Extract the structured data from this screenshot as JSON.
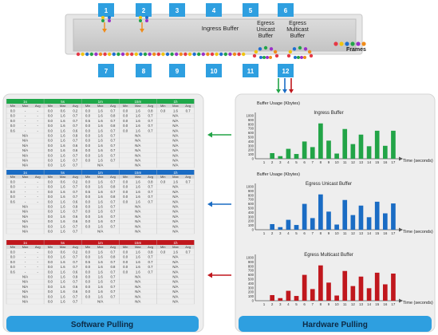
{
  "switch": {
    "ports_top": [
      "1",
      "2",
      "3",
      "4",
      "5",
      "6"
    ],
    "ports_bottom": [
      "7",
      "8",
      "9",
      "10",
      "11",
      "12"
    ],
    "ingress_label": "Ingress Buffer",
    "egress_unicast_label": "Egress\nUnicast\nBuffer",
    "egress_multicast_label": "Egress\nMulticast\nBuffer",
    "frames_label": "Frames",
    "frame_colors": [
      "#e63946",
      "#f1c40f",
      "#1f6fd1",
      "#22a447",
      "#9b30c8",
      "#f08c1a"
    ]
  },
  "software": {
    "label": "Software Pulling",
    "header_groups": [
      "1s",
      "5s",
      "1m",
      "15m",
      "1h"
    ],
    "subheaders": [
      "Min",
      "Max",
      "Avg",
      "Min",
      "Max",
      "Avg",
      "Min",
      "Max",
      "Avg",
      "Min",
      "Max",
      "Avg",
      "Min",
      "Max",
      "Avg"
    ],
    "tables": [
      {
        "color": "#1fa84a",
        "rows": [
          [
            "0.0",
            "-",
            "-",
            "0.0",
            "0.6",
            "0.2",
            "0.0",
            "1.6",
            "0.7",
            "0.0",
            "1.6",
            "0.8",
            "0.0",
            "1.6",
            "0.7"
          ],
          [
            "0.0",
            "-",
            "-",
            "0.0",
            "1.6",
            "0.7",
            "0.0",
            "1.6",
            "0.8",
            "0.0",
            "1.6",
            "0.7",
            "",
            "N/A",
            ""
          ],
          [
            "0.0",
            "-",
            "-",
            "0.0",
            "1.6",
            "0.7",
            "0.5",
            "1.6",
            "0.7",
            "0.0",
            "1.6",
            "0.7",
            "",
            "N/A",
            ""
          ],
          [
            "0.0",
            "-",
            "-",
            "0.0",
            "1.6",
            "0.7",
            "0.0",
            "1.6",
            "0.8",
            "0.0",
            "1.6",
            "0.7",
            "",
            "N/A",
            ""
          ],
          [
            "0.6",
            "-",
            "-",
            "0.0",
            "1.6",
            "0.6",
            "0.0",
            "1.6",
            "0.7",
            "0.0",
            "1.6",
            "0.7",
            "",
            "N/A",
            ""
          ],
          [
            "",
            "N/A",
            "",
            "0.0",
            "1.6",
            "0.9",
            "0.0",
            "1.6",
            "0.7",
            "",
            "N/A",
            "",
            "",
            "N/A",
            ""
          ],
          [
            "",
            "N/A",
            "",
            "0.0",
            "1.6",
            "0.7",
            "0.0",
            "1.6",
            "0.7",
            "",
            "N/A",
            "",
            "",
            "N/A",
            ""
          ],
          [
            "",
            "N/A",
            "",
            "0.0",
            "1.6",
            "0.6",
            "0.0",
            "1.6",
            "0.7",
            "",
            "N/A",
            "",
            "",
            "N/A",
            ""
          ],
          [
            "",
            "N/A",
            "",
            "0.0",
            "1.6",
            "0.6",
            "0.0",
            "1.6",
            "0.7",
            "",
            "N/A",
            "",
            "",
            "N/A",
            ""
          ],
          [
            "",
            "N/A",
            "",
            "0.0",
            "1.6",
            "0.7",
            "0.0",
            "1.6",
            "0.7",
            "",
            "N/A",
            "",
            "",
            "N/A",
            ""
          ],
          [
            "",
            "N/A",
            "",
            "0.0",
            "1.6",
            "0.7",
            "0.0",
            "1.6",
            "0.7",
            "",
            "N/A",
            "",
            "",
            "N/A",
            ""
          ],
          [
            "",
            "N/A",
            "",
            "0.0",
            "1.6",
            "0.7",
            "",
            "N/A",
            "",
            "",
            "N/A",
            "",
            "",
            "N/A",
            ""
          ]
        ]
      },
      {
        "color": "#1a6cc4",
        "rows": [
          [
            "0.0",
            "-",
            "-",
            "0.0",
            "0.6",
            "0.2",
            "0.0",
            "1.6",
            "0.7",
            "0.0",
            "1.6",
            "0.8",
            "0.0",
            "1.6",
            "0.7"
          ],
          [
            "0.0",
            "-",
            "-",
            "0.0",
            "1.6",
            "0.7",
            "0.0",
            "1.6",
            "0.8",
            "0.0",
            "1.6",
            "0.7",
            "",
            "N/A",
            ""
          ],
          [
            "0.0",
            "-",
            "-",
            "0.0",
            "1.6",
            "0.7",
            "0.5",
            "1.6",
            "0.7",
            "0.0",
            "1.6",
            "0.7",
            "",
            "N/A",
            ""
          ],
          [
            "0.0",
            "-",
            "-",
            "0.0",
            "1.6",
            "0.7",
            "0.0",
            "1.6",
            "0.8",
            "0.0",
            "1.6",
            "0.7",
            "",
            "N/A",
            ""
          ],
          [
            "0.6",
            "-",
            "-",
            "0.0",
            "1.6",
            "0.6",
            "0.0",
            "1.6",
            "0.7",
            "0.0",
            "1.6",
            "0.7",
            "",
            "N/A",
            ""
          ],
          [
            "",
            "N/A",
            "",
            "0.0",
            "1.6",
            "0.9",
            "0.0",
            "1.6",
            "0.7",
            "",
            "N/A",
            "",
            "",
            "N/A",
            ""
          ],
          [
            "",
            "N/A",
            "",
            "0.0",
            "1.6",
            "0.7",
            "0.0",
            "1.6",
            "0.7",
            "",
            "N/A",
            "",
            "",
            "N/A",
            ""
          ],
          [
            "",
            "N/A",
            "",
            "0.0",
            "1.6",
            "0.6",
            "0.0",
            "1.6",
            "0.7",
            "",
            "N/A",
            "",
            "",
            "N/A",
            ""
          ],
          [
            "",
            "N/A",
            "",
            "0.0",
            "1.6",
            "0.6",
            "0.0",
            "1.6",
            "0.7",
            "",
            "N/A",
            "",
            "",
            "N/A",
            ""
          ],
          [
            "",
            "N/A",
            "",
            "0.0",
            "1.6",
            "0.7",
            "0.0",
            "1.6",
            "0.7",
            "",
            "N/A",
            "",
            "",
            "N/A",
            ""
          ],
          [
            "",
            "N/A",
            "",
            "0.0",
            "1.6",
            "0.7",
            "",
            "N/A",
            "",
            "",
            "N/A",
            "",
            "",
            "N/A",
            ""
          ]
        ]
      },
      {
        "color": "#c0171d",
        "rows": [
          [
            "0.0",
            "-",
            "-",
            "0.0",
            "0.6",
            "0.2",
            "0.0",
            "1.6",
            "0.7",
            "0.0",
            "1.6",
            "0.8",
            "0.0",
            "1.6",
            "0.7"
          ],
          [
            "0.0",
            "-",
            "-",
            "0.0",
            "1.6",
            "0.7",
            "0.0",
            "1.6",
            "0.8",
            "0.0",
            "1.6",
            "0.7",
            "",
            "N/A",
            ""
          ],
          [
            "0.0",
            "-",
            "-",
            "0.0",
            "1.6",
            "0.7",
            "0.5",
            "1.6",
            "0.7",
            "0.0",
            "1.6",
            "0.7",
            "",
            "N/A",
            ""
          ],
          [
            "0.0",
            "-",
            "-",
            "0.0",
            "1.6",
            "0.7",
            "0.0",
            "1.6",
            "0.8",
            "0.0",
            "1.6",
            "0.7",
            "",
            "N/A",
            ""
          ],
          [
            "0.6",
            "-",
            "-",
            "0.0",
            "1.6",
            "0.6",
            "0.0",
            "1.6",
            "0.7",
            "0.0",
            "1.6",
            "0.7",
            "",
            "N/A",
            ""
          ],
          [
            "",
            "N/A",
            "",
            "0.0",
            "1.6",
            "0.9",
            "0.0",
            "1.6",
            "0.7",
            "",
            "N/A",
            "",
            "",
            "N/A",
            ""
          ],
          [
            "",
            "N/A",
            "",
            "0.0",
            "1.6",
            "0.7",
            "0.0",
            "1.6",
            "0.7",
            "",
            "N/A",
            "",
            "",
            "N/A",
            ""
          ],
          [
            "",
            "N/A",
            "",
            "0.0",
            "1.6",
            "0.6",
            "0.0",
            "1.6",
            "0.7",
            "",
            "N/A",
            "",
            "",
            "N/A",
            ""
          ],
          [
            "",
            "N/A",
            "",
            "0.0",
            "1.6",
            "0.6",
            "0.0",
            "1.6",
            "0.7",
            "",
            "N/A",
            "",
            "",
            "N/A",
            ""
          ],
          [
            "",
            "N/A",
            "",
            "0.0",
            "1.6",
            "0.7",
            "0.0",
            "1.6",
            "0.7",
            "",
            "N/A",
            "",
            "",
            "N/A",
            ""
          ],
          [
            "",
            "N/A",
            "",
            "0.0",
            "1.6",
            "0.7",
            "",
            "N/A",
            "",
            "",
            "N/A",
            "",
            "",
            "N/A",
            ""
          ]
        ]
      }
    ]
  },
  "hardware": {
    "label": "Hardware Pulling"
  },
  "chart_data": [
    {
      "type": "bar",
      "title": "Ingress Buffer",
      "ylabel": "Buffer Usage (Kbytes)",
      "xlabel": "Time (seconds)",
      "categories": [
        "1",
        "2",
        "3",
        "4",
        "5",
        "6",
        "7",
        "8",
        "9",
        "10",
        "11",
        "12",
        "13",
        "14",
        "15",
        "16",
        "17"
      ],
      "values": [
        0,
        130,
        60,
        230,
        110,
        400,
        270,
        820,
        420,
        120,
        690,
        340,
        560,
        290,
        650,
        300,
        650
      ],
      "yticks": [
        "0",
        "100",
        "200",
        "300",
        "400",
        "500",
        "600",
        "700",
        "800",
        "900",
        "1000"
      ],
      "ylim": [
        0,
        1000
      ],
      "color": "#22a447"
    },
    {
      "type": "bar",
      "title": "Egress Unicast Buffer",
      "ylabel": "Buffer Usage (Kbytes)",
      "xlabel": "Time (seconds)",
      "categories": [
        "1",
        "2",
        "3",
        "4",
        "5",
        "6",
        "7",
        "8",
        "9",
        "10",
        "11",
        "12",
        "13",
        "14",
        "15",
        "16",
        "17"
      ],
      "values": [
        0,
        130,
        60,
        230,
        110,
        600,
        270,
        820,
        420,
        120,
        690,
        340,
        560,
        290,
        650,
        380,
        610
      ],
      "yticks": [
        "0",
        "100",
        "200",
        "300",
        "400",
        "500",
        "600",
        "700",
        "800",
        "900",
        "1000"
      ],
      "ylim": [
        0,
        1000
      ],
      "color": "#1a6cc4"
    },
    {
      "type": "bar",
      "title": "Egress Multicast Buffer",
      "xlabel": "Time (seconds)",
      "categories": [
        "1",
        "2",
        "3",
        "4",
        "5",
        "6",
        "7",
        "8",
        "9",
        "10",
        "11",
        "12",
        "13",
        "14",
        "15",
        "16",
        "17"
      ],
      "values": [
        0,
        130,
        60,
        230,
        110,
        600,
        270,
        820,
        420,
        120,
        690,
        340,
        560,
        290,
        650,
        380,
        630
      ],
      "yticks": [
        "0",
        "100",
        "200",
        "300",
        "400",
        "500",
        "600",
        "700",
        "800",
        "900",
        "1000"
      ],
      "ylim": [
        0,
        1000
      ],
      "color": "#c0171d"
    }
  ]
}
